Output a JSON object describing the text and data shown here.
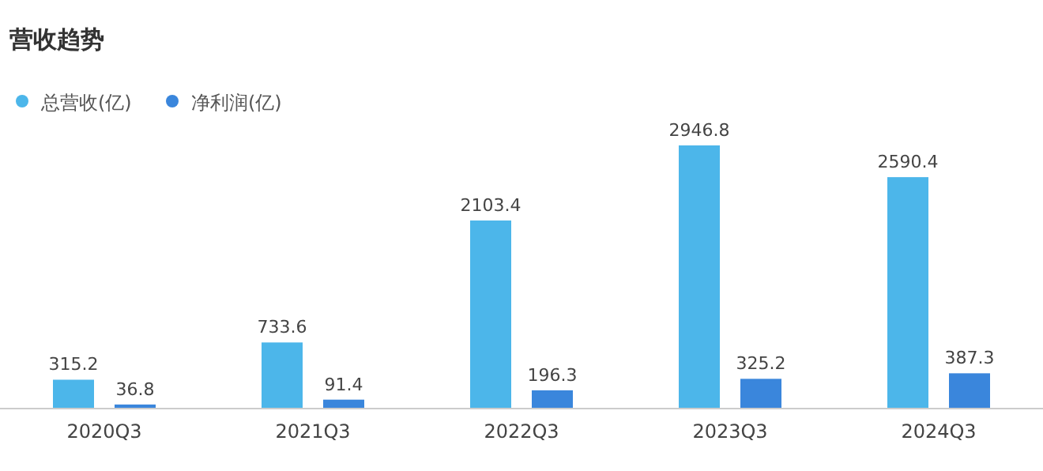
{
  "chart_data": {
    "type": "bar",
    "title": "营收趋势",
    "categories": [
      "2020Q3",
      "2021Q3",
      "2022Q3",
      "2023Q3",
      "2024Q3"
    ],
    "series": [
      {
        "name": "总营收(亿)",
        "color": "#4cb6ea",
        "values": [
          315.2,
          733.6,
          2103.4,
          2946.8,
          2590.4
        ]
      },
      {
        "name": "净利润(亿)",
        "color": "#3a86dc",
        "values": [
          36.8,
          91.4,
          196.3,
          325.2,
          387.3
        ]
      }
    ],
    "data_labels": true,
    "legend": "top left"
  }
}
